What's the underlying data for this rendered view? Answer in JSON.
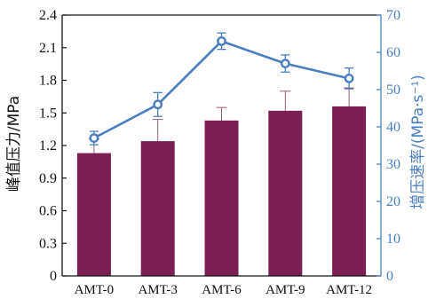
{
  "chart_data": {
    "type": "bar",
    "categories": [
      "AMT-0",
      "AMT-3",
      "AMT-6",
      "AMT-9",
      "AMT-12"
    ],
    "left_axis": {
      "label": "峰值压力/MPa",
      "ylim": [
        0,
        2.4
      ],
      "ticks": [
        "0",
        "0.3",
        "0.6",
        "0.9",
        "1.2",
        "1.5",
        "1.8",
        "2.1",
        "2.4"
      ]
    },
    "right_axis": {
      "label": "增压速率/(MPa·s⁻¹)",
      "ylim": [
        0,
        70
      ],
      "ticks": [
        "0",
        "10",
        "20",
        "30",
        "40",
        "50",
        "60",
        "70"
      ]
    },
    "series": [
      {
        "kind": "bar",
        "axis": "left",
        "values": [
          1.13,
          1.24,
          1.43,
          1.52,
          1.56
        ],
        "error_up": [
          0.13,
          0.2,
          0.12,
          0.18,
          0.17
        ],
        "color": "#7b1e52"
      },
      {
        "kind": "line",
        "axis": "right",
        "values": [
          37,
          46,
          63,
          57,
          53
        ],
        "error": [
          1.8,
          3.2,
          2.2,
          2.3,
          2.8
        ],
        "color": "#4a7ec0"
      }
    ],
    "grid": false,
    "legend": "none"
  }
}
